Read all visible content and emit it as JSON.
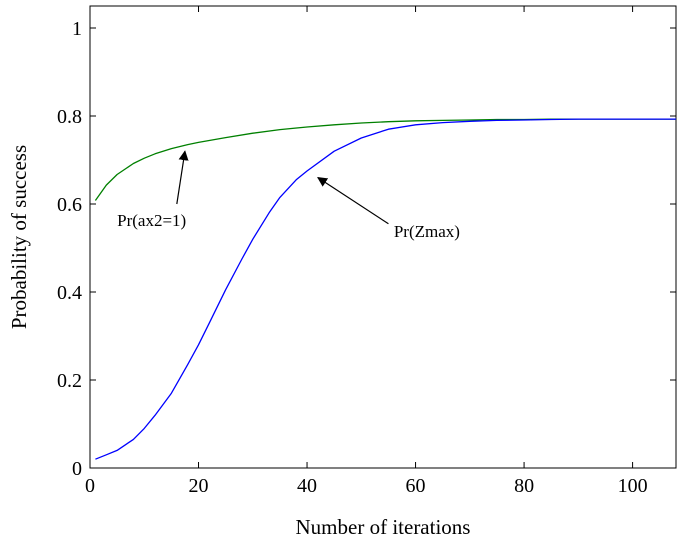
{
  "chart_data": {
    "type": "line",
    "title": "",
    "xlabel": "Number of iterations",
    "ylabel": "Probability of success",
    "xlim": [
      0,
      108
    ],
    "ylim": [
      0,
      1.05
    ],
    "xticks": [
      0,
      20,
      40,
      60,
      80,
      100
    ],
    "yticks": [
      0,
      0.2,
      0.4,
      0.6,
      0.8,
      1
    ],
    "xtick_labels": [
      "0",
      "20",
      "40",
      "60",
      "80",
      "100"
    ],
    "ytick_labels": [
      "0",
      "0.2",
      "0.4",
      "0.6",
      "0.8",
      "1"
    ],
    "grid": false,
    "legend": "none",
    "series": [
      {
        "color": "#008000",
        "x": [
          1,
          3,
          5,
          8,
          10,
          12,
          15,
          18,
          20,
          25,
          30,
          35,
          40,
          45,
          50,
          55,
          60,
          65,
          70,
          75,
          80,
          85,
          90,
          95,
          100,
          105,
          108
        ],
        "y": [
          0.608,
          0.643,
          0.667,
          0.692,
          0.704,
          0.714,
          0.726,
          0.735,
          0.74,
          0.751,
          0.761,
          0.769,
          0.775,
          0.78,
          0.784,
          0.787,
          0.789,
          0.79,
          0.791,
          0.792,
          0.792,
          0.793,
          0.793,
          0.793,
          0.793,
          0.793,
          0.793
        ]
      },
      {
        "color": "#0000ff",
        "x": [
          1,
          3,
          5,
          8,
          10,
          12,
          15,
          18,
          20,
          22,
          25,
          28,
          30,
          33,
          35,
          38,
          40,
          45,
          50,
          55,
          60,
          65,
          70,
          75,
          80,
          85,
          90,
          95,
          100,
          105,
          108
        ],
        "y": [
          0.02,
          0.03,
          0.04,
          0.065,
          0.09,
          0.12,
          0.17,
          0.235,
          0.28,
          0.33,
          0.405,
          0.475,
          0.52,
          0.58,
          0.615,
          0.655,
          0.675,
          0.72,
          0.75,
          0.77,
          0.78,
          0.785,
          0.788,
          0.79,
          0.791,
          0.792,
          0.793,
          0.793,
          0.793,
          0.793,
          0.793
        ]
      }
    ],
    "annotations": [
      {
        "text": "Pr(ax2=1)",
        "text_x": 5,
        "text_y": 0.55,
        "arrow_from": [
          16,
          0.6
        ],
        "arrow_to": [
          17.5,
          0.72
        ]
      },
      {
        "text": "Pr(Zmax)",
        "text_x": 56,
        "text_y": 0.525,
        "arrow_from": [
          55,
          0.555
        ],
        "arrow_to": [
          42,
          0.66
        ]
      }
    ]
  }
}
